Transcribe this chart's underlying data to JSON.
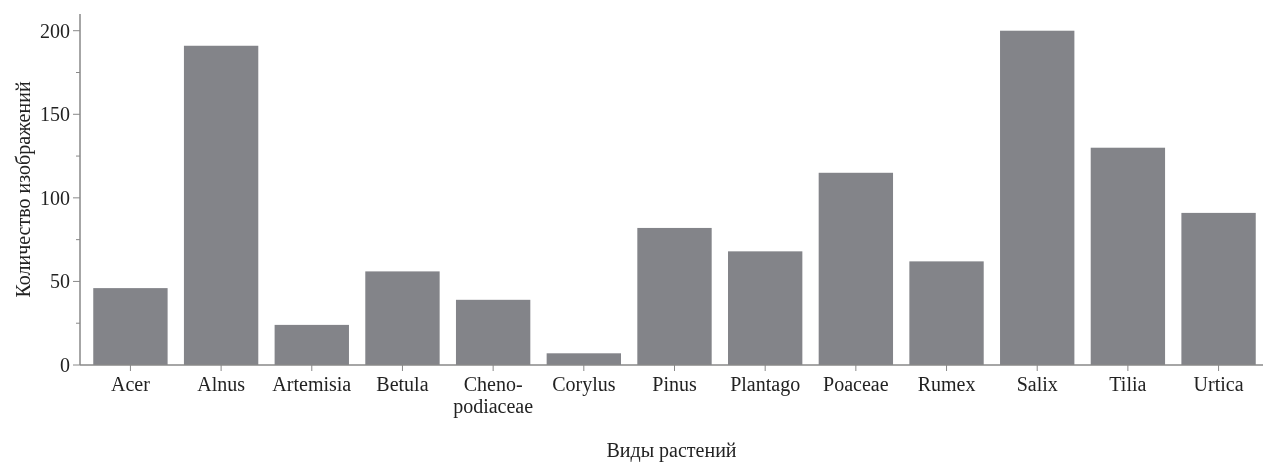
{
  "chart_data": {
    "type": "bar",
    "xlabel": "Виды растений",
    "ylabel": "Количество изображений",
    "categories": [
      "Acer",
      "Alnus",
      "Artemisia",
      "Betula",
      "Cheno-\npodiaceae",
      "Corylus",
      "Pinus",
      "Plantago",
      "Poaceae",
      "Rumex",
      "Salix",
      "Tilia",
      "Urtica"
    ],
    "values": [
      46,
      191,
      24,
      56,
      39,
      7,
      82,
      68,
      115,
      62,
      200,
      130,
      91
    ],
    "color": "#838489",
    "ylim": [
      0,
      210
    ],
    "yticks": [
      0,
      {
        "value": 25,
        "label": null
      },
      50,
      {
        "value": 75,
        "label": null
      },
      100,
      {
        "value": 125,
        "label": null
      },
      150,
      {
        "value": 175,
        "label": null
      },
      200
    ],
    "grid": false
  }
}
